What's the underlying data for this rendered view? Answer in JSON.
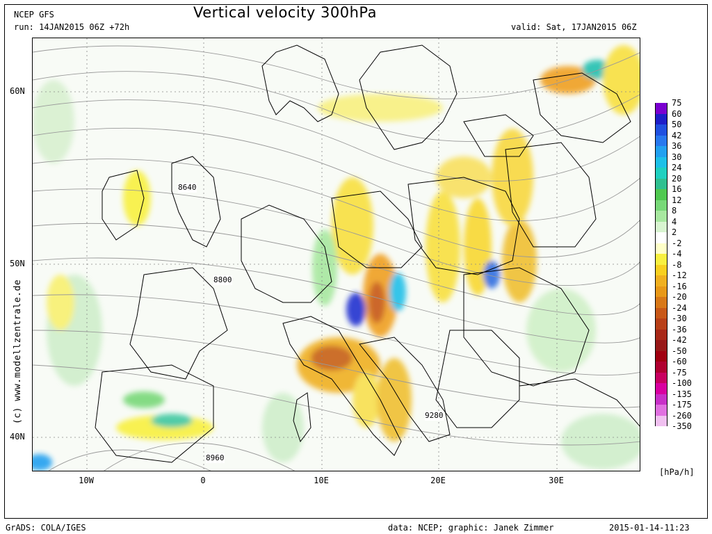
{
  "header": {
    "model": "NCEP GFS",
    "run": "run: 14JAN2015 06Z +72h",
    "title": "Vertical velocity 300hPa",
    "valid": "valid: Sat, 17JAN2015 06Z"
  },
  "axes": {
    "lat_labels": [
      "60N",
      "50N",
      "40N"
    ],
    "lon_labels": [
      "10W",
      "0",
      "10E",
      "20E",
      "30E"
    ]
  },
  "contour_labels": [
    "8640",
    "8800",
    "8960",
    "9280"
  ],
  "credit": "(c) www.modellzentrale.de",
  "colorbar": {
    "units": "[hPa/h]",
    "ticks": [
      "75",
      "60",
      "50",
      "42",
      "36",
      "30",
      "24",
      "20",
      "16",
      "12",
      "8",
      "4",
      "2",
      "-2",
      "-4",
      "-8",
      "-12",
      "-16",
      "-20",
      "-24",
      "-30",
      "-36",
      "-42",
      "-50",
      "-60",
      "-75",
      "-100",
      "-135",
      "-175",
      "-260",
      "-350"
    ],
    "colors": [
      "#7a00d0",
      "#1e1ec8",
      "#2050e0",
      "#2878ee",
      "#22a0f0",
      "#1ec0e8",
      "#20d0c0",
      "#30c090",
      "#50c850",
      "#78d878",
      "#a8e8a0",
      "#d8f4d0",
      "#ffffff",
      "#ffffc8",
      "#f8f040",
      "#f8d020",
      "#f0b020",
      "#e89818",
      "#d87818",
      "#c85818",
      "#b84018",
      "#a82818",
      "#981818",
      "#a00010",
      "#b00030",
      "#c80060",
      "#d800a0",
      "#c830c8",
      "#e070e0",
      "#f0c0f0"
    ]
  },
  "footer": {
    "left": "GrADS: COLA/IGES",
    "middle": "data: NCEP; graphic: Janek Zimmer",
    "right": "2015-01-14-11:23"
  }
}
